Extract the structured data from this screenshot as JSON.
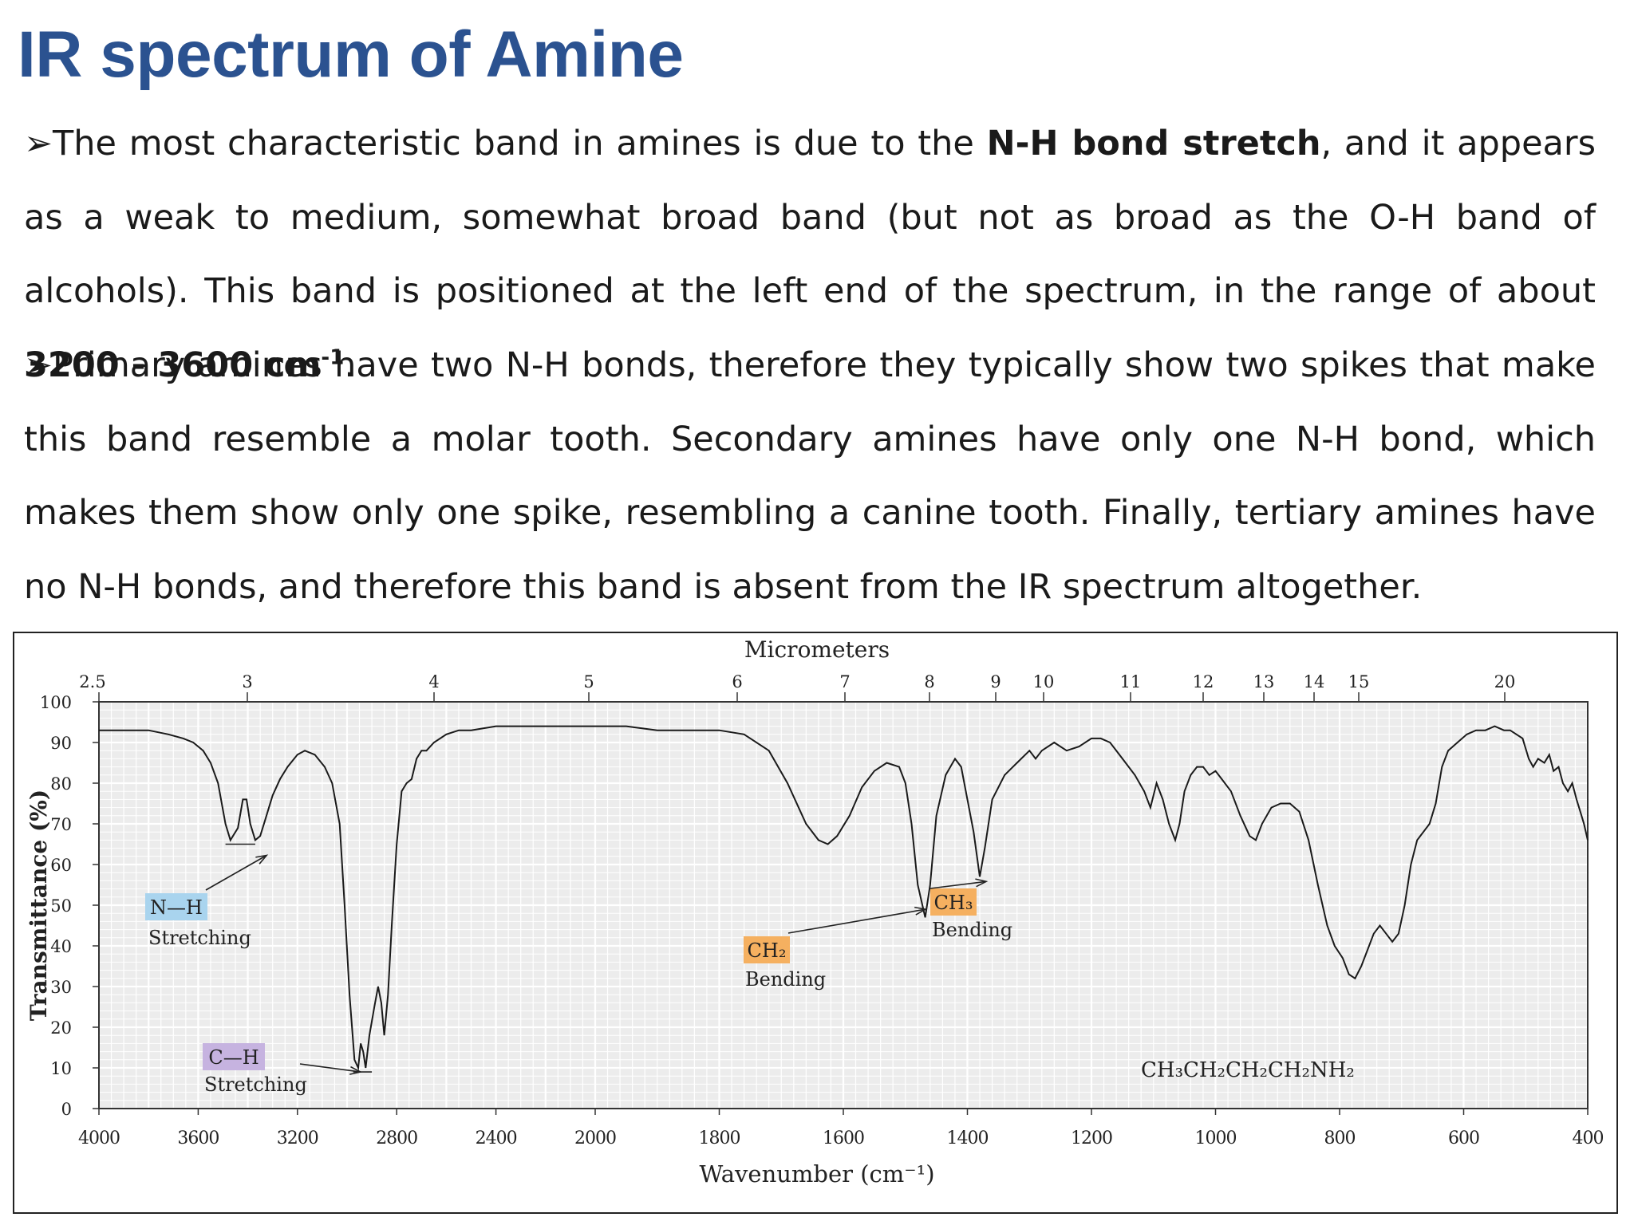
{
  "slide": {
    "title": "IR spectrum of Amine",
    "bullet_1": {
      "bullet": "➢",
      "pre": "The most characteristic band in amines is due to the ",
      "bold_1": "N-H bond stretch",
      "mid": ", and it appears as a weak to medium, somewhat broad band (but not as broad as the O-H band of alcohols). This band is positioned at the left end of the spectrum, in the range of about ",
      "bold_2": "3200 - 3600 cm",
      "sup": "-1",
      "end": "."
    },
    "bullet_2": {
      "bullet": "➢",
      "text": "Primary amines have two N-H bonds, therefore they typically show two spikes that make this band resemble a molar tooth. Secondary amines have only one N-H bond, which makes them show only one spike, resembling a canine tooth. Finally, tertiary amines have no N-H bonds, and therefore this band is absent from the IR spectrum altogether."
    }
  },
  "chart_data": {
    "type": "line",
    "xlabel": "Wavenumber (cm⁻¹)",
    "x2label": "Micrometers",
    "ylabel": "Transmittance (%)",
    "xlim": [
      4000,
      400
    ],
    "ylim": [
      0,
      100
    ],
    "grid": true,
    "x_ticks": [
      4000,
      3600,
      3200,
      2800,
      2400,
      2000,
      1800,
      1600,
      1400,
      1200,
      1000,
      800,
      600,
      400
    ],
    "y_ticks": [
      0,
      10,
      20,
      30,
      40,
      50,
      60,
      70,
      80,
      90,
      100
    ],
    "micrometer_ticks": [
      "2.5",
      "3",
      "4",
      "5",
      "6",
      "7",
      "8",
      "9",
      "10",
      "11",
      "12",
      "13",
      "14",
      "15",
      "20"
    ],
    "compound_label": "CH₃CH₂CH₂CH₂NH₂",
    "annotations": [
      {
        "label": "N—H",
        "sub": "Stretching",
        "color": "#a9d4ee",
        "x": 3350
      },
      {
        "label": "C—H",
        "sub": "Stretching",
        "color": "#c6b3e0",
        "x": 2920
      },
      {
        "label": "CH₂",
        "sub": "Bending",
        "color": "#f5b060",
        "x": 1465
      },
      {
        "label": "CH₃",
        "sub": "Bending",
        "color": "#f5b060",
        "x": 1380
      }
    ],
    "series": [
      {
        "values": [
          [
            4000,
            93
          ],
          [
            3900,
            93
          ],
          [
            3800,
            93
          ],
          [
            3720,
            92
          ],
          [
            3660,
            91
          ],
          [
            3620,
            90
          ],
          [
            3580,
            88
          ],
          [
            3550,
            85
          ],
          [
            3520,
            80
          ],
          [
            3490,
            70
          ],
          [
            3470,
            66
          ],
          [
            3440,
            69
          ],
          [
            3420,
            76
          ],
          [
            3405,
            76
          ],
          [
            3390,
            70
          ],
          [
            3370,
            66
          ],
          [
            3350,
            67
          ],
          [
            3330,
            71
          ],
          [
            3300,
            77
          ],
          [
            3270,
            81
          ],
          [
            3240,
            84
          ],
          [
            3200,
            87
          ],
          [
            3170,
            88
          ],
          [
            3130,
            87
          ],
          [
            3090,
            84
          ],
          [
            3060,
            80
          ],
          [
            3030,
            70
          ],
          [
            3010,
            50
          ],
          [
            2990,
            28
          ],
          [
            2970,
            12
          ],
          [
            2955,
            10
          ],
          [
            2945,
            16
          ],
          [
            2935,
            14
          ],
          [
            2925,
            10
          ],
          [
            2910,
            18
          ],
          [
            2890,
            25
          ],
          [
            2875,
            30
          ],
          [
            2862,
            26
          ],
          [
            2850,
            18
          ],
          [
            2835,
            28
          ],
          [
            2820,
            45
          ],
          [
            2800,
            65
          ],
          [
            2780,
            78
          ],
          [
            2760,
            80
          ],
          [
            2740,
            81
          ],
          [
            2720,
            86
          ],
          [
            2700,
            88
          ],
          [
            2680,
            88
          ],
          [
            2650,
            90
          ],
          [
            2600,
            92
          ],
          [
            2550,
            93
          ],
          [
            2500,
            93
          ],
          [
            2400,
            94
          ],
          [
            2300,
            94
          ],
          [
            2200,
            94
          ],
          [
            2100,
            94
          ],
          [
            2000,
            94
          ],
          [
            1950,
            94
          ],
          [
            1900,
            93
          ],
          [
            1850,
            93
          ],
          [
            1800,
            93
          ],
          [
            1760,
            92
          ],
          [
            1720,
            88
          ],
          [
            1690,
            80
          ],
          [
            1660,
            70
          ],
          [
            1640,
            66
          ],
          [
            1625,
            65
          ],
          [
            1610,
            67
          ],
          [
            1590,
            72
          ],
          [
            1570,
            79
          ],
          [
            1550,
            83
          ],
          [
            1530,
            85
          ],
          [
            1510,
            84
          ],
          [
            1500,
            80
          ],
          [
            1490,
            70
          ],
          [
            1480,
            55
          ],
          [
            1468,
            47
          ],
          [
            1460,
            55
          ],
          [
            1450,
            72
          ],
          [
            1435,
            82
          ],
          [
            1420,
            86
          ],
          [
            1410,
            84
          ],
          [
            1400,
            76
          ],
          [
            1390,
            68
          ],
          [
            1380,
            57
          ],
          [
            1372,
            64
          ],
          [
            1360,
            76
          ],
          [
            1340,
            82
          ],
          [
            1320,
            85
          ],
          [
            1300,
            88
          ],
          [
            1290,
            86
          ],
          [
            1280,
            88
          ],
          [
            1260,
            90
          ],
          [
            1240,
            88
          ],
          [
            1220,
            89
          ],
          [
            1200,
            91
          ],
          [
            1185,
            91
          ],
          [
            1170,
            90
          ],
          [
            1150,
            86
          ],
          [
            1130,
            82
          ],
          [
            1115,
            78
          ],
          [
            1105,
            74
          ],
          [
            1095,
            80
          ],
          [
            1085,
            76
          ],
          [
            1075,
            70
          ],
          [
            1065,
            66
          ],
          [
            1058,
            70
          ],
          [
            1050,
            78
          ],
          [
            1040,
            82
          ],
          [
            1030,
            84
          ],
          [
            1020,
            84
          ],
          [
            1010,
            82
          ],
          [
            1000,
            83
          ],
          [
            990,
            81
          ],
          [
            975,
            78
          ],
          [
            960,
            72
          ],
          [
            945,
            67
          ],
          [
            935,
            66
          ],
          [
            925,
            70
          ],
          [
            910,
            74
          ],
          [
            895,
            75
          ],
          [
            880,
            75
          ],
          [
            865,
            73
          ],
          [
            850,
            66
          ],
          [
            835,
            55
          ],
          [
            820,
            45
          ],
          [
            808,
            40
          ],
          [
            795,
            37
          ],
          [
            785,
            33
          ],
          [
            775,
            32
          ],
          [
            765,
            35
          ],
          [
            755,
            39
          ],
          [
            745,
            43
          ],
          [
            735,
            45
          ],
          [
            725,
            43
          ],
          [
            715,
            41
          ],
          [
            705,
            43
          ],
          [
            695,
            50
          ],
          [
            685,
            60
          ],
          [
            675,
            66
          ],
          [
            665,
            68
          ],
          [
            655,
            70
          ],
          [
            645,
            75
          ],
          [
            635,
            84
          ],
          [
            625,
            88
          ],
          [
            610,
            90
          ],
          [
            595,
            92
          ],
          [
            580,
            93
          ],
          [
            565,
            93
          ],
          [
            550,
            94
          ],
          [
            535,
            93
          ],
          [
            525,
            93
          ],
          [
            515,
            92
          ],
          [
            505,
            91
          ],
          [
            495,
            86
          ],
          [
            488,
            84
          ],
          [
            480,
            86
          ],
          [
            470,
            85
          ],
          [
            462,
            87
          ],
          [
            455,
            83
          ],
          [
            447,
            84
          ],
          [
            440,
            80
          ],
          [
            432,
            78
          ],
          [
            425,
            80
          ],
          [
            418,
            76
          ],
          [
            412,
            73
          ],
          [
            406,
            70
          ],
          [
            400,
            66
          ]
        ]
      }
    ]
  }
}
